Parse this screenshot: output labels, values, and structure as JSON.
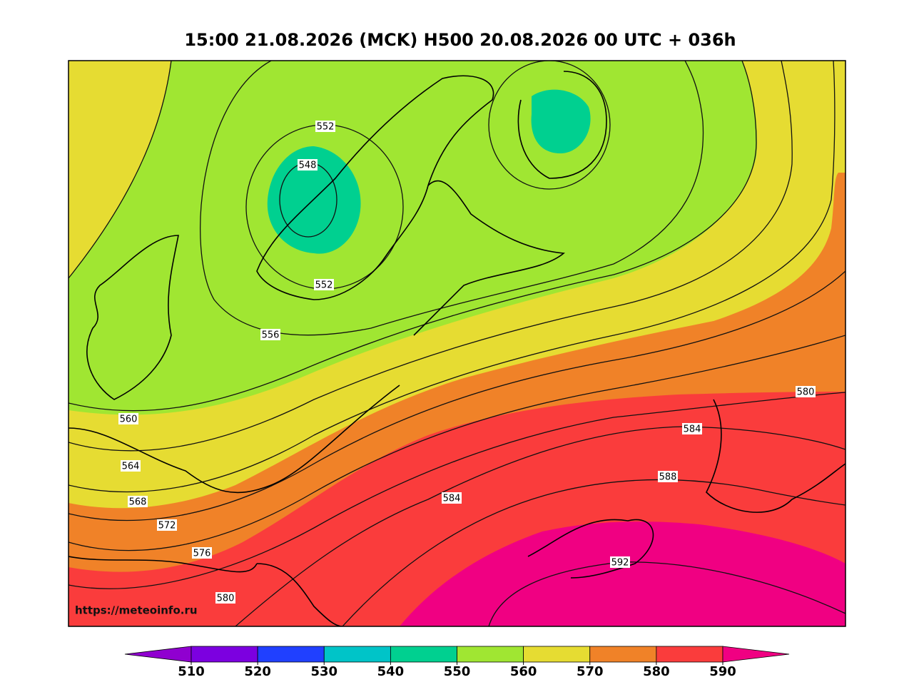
{
  "title": "15:00 21.08.2026 (MCK) H500  20.08.2026 00 UTC + 036h",
  "source": "https://meteoinfo.ru",
  "contour_labels": [
    552,
    548,
    552,
    556,
    560,
    564,
    568,
    572,
    576,
    580,
    580,
    584,
    588,
    584,
    592
  ],
  "colorbar": {
    "ticks": [
      510,
      520,
      530,
      540,
      550,
      560,
      570,
      580,
      590
    ],
    "colors": [
      "#9000d0",
      "#7c00e0",
      "#2040ff",
      "#00c4c8",
      "#00d090",
      "#a0e632",
      "#e6dc32",
      "#f08228",
      "#fa3c3c",
      "#f00082"
    ]
  }
}
